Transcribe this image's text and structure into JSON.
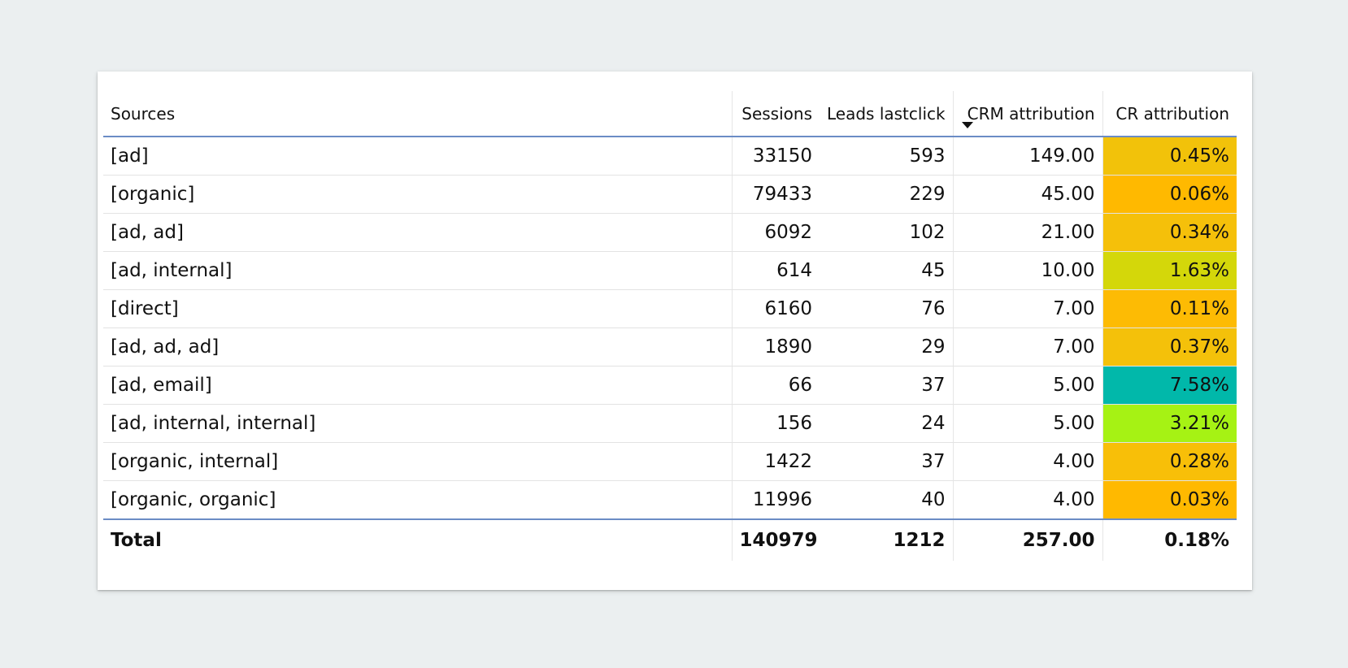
{
  "chart_data": {
    "type": "table",
    "columns": [
      "Sources",
      "Sessions",
      "Leads lastclick",
      "CRM attribution",
      "CR attribution"
    ],
    "sorted_column": "CRM attribution",
    "sort_direction": "descending",
    "rows": [
      {
        "source": "[ad]",
        "sessions": "33150",
        "leads": "593",
        "crm": "149.00",
        "cr": "0.45%",
        "cr_color": "#f2c20a"
      },
      {
        "source": "[organic]",
        "sessions": "79433",
        "leads": "229",
        "crm": "45.00",
        "cr": "0.06%",
        "cr_color": "#ffb900"
      },
      {
        "source": "[ad, ad]",
        "sessions": "6092",
        "leads": "102",
        "crm": "21.00",
        "cr": "0.34%",
        "cr_color": "#f5c00a"
      },
      {
        "source": "[ad, internal]",
        "sessions": "614",
        "leads": "45",
        "crm": "10.00",
        "cr": "1.63%",
        "cr_color": "#d4d70a"
      },
      {
        "source": "[direct]",
        "sessions": "6160",
        "leads": "76",
        "crm": "7.00",
        "cr": "0.11%",
        "cr_color": "#fdbb04"
      },
      {
        "source": "[ad, ad, ad]",
        "sessions": "1890",
        "leads": "29",
        "crm": "7.00",
        "cr": "0.37%",
        "cr_color": "#f4c10a"
      },
      {
        "source": "[ad, email]",
        "sessions": "66",
        "leads": "37",
        "crm": "5.00",
        "cr": "7.58%",
        "cr_color": "#01b8aa"
      },
      {
        "source": "[ad, internal, internal]",
        "sessions": "156",
        "leads": "24",
        "crm": "5.00",
        "cr": "3.21%",
        "cr_color": "#a6f214"
      },
      {
        "source": "[organic, internal]",
        "sessions": "1422",
        "leads": "37",
        "crm": "4.00",
        "cr": "0.28%",
        "cr_color": "#f8bf08"
      },
      {
        "source": "[organic, organic]",
        "sessions": "11996",
        "leads": "40",
        "crm": "4.00",
        "cr": "0.03%",
        "cr_color": "#ffb900"
      }
    ],
    "total": {
      "label": "Total",
      "sessions": "140979",
      "leads": "1212",
      "crm": "257.00",
      "cr": "0.18%"
    }
  }
}
